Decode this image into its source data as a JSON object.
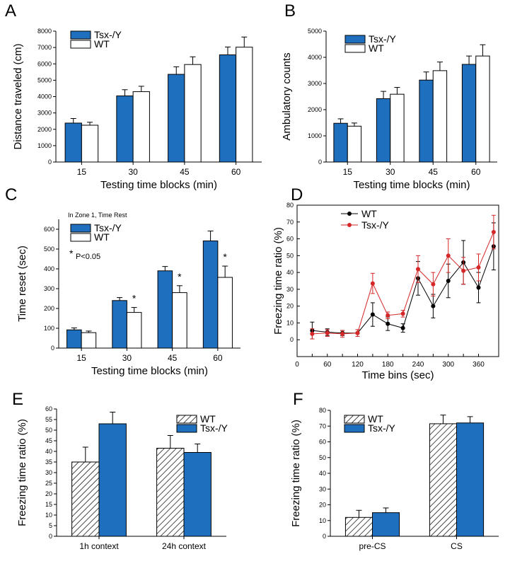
{
  "colors": {
    "tsx": "#1f6fbf",
    "wt": "#ffffff",
    "wt_line": "#000000",
    "tsx_line": "#d62728",
    "hatch": "#000000"
  },
  "chart_data": [
    {
      "panel": "A",
      "type": "bar",
      "categories": [
        "15",
        "30",
        "45",
        "60"
      ],
      "series": [
        {
          "name": "Tsx-/Y",
          "values": [
            2380,
            4040,
            5360,
            6550
          ],
          "errors": [
            280,
            380,
            460,
            480
          ],
          "style": "blue"
        },
        {
          "name": "WT",
          "values": [
            2250,
            4300,
            5960,
            7020
          ],
          "errors": [
            180,
            330,
            470,
            620
          ],
          "style": "white"
        }
      ],
      "xlabel": "Testing time blocks (min)",
      "ylabel": "Distance traveled (cm)",
      "ylim": [
        0,
        8000
      ],
      "yticks": [
        0,
        1000,
        2000,
        3000,
        4000,
        5000,
        6000,
        7000,
        8000
      ],
      "legend": "top-left"
    },
    {
      "panel": "B",
      "type": "bar",
      "categories": [
        "15",
        "30",
        "45",
        "60"
      ],
      "series": [
        {
          "name": "Tsx-/Y",
          "values": [
            1480,
            2420,
            3130,
            3730
          ],
          "errors": [
            170,
            280,
            310,
            320
          ],
          "style": "blue"
        },
        {
          "name": "WT",
          "values": [
            1370,
            2590,
            3490,
            4050
          ],
          "errors": [
            120,
            260,
            330,
            430
          ],
          "style": "white"
        }
      ],
      "xlabel": "Testing time blocks (min)",
      "ylabel": "Ambulatory counts",
      "ylim": [
        0,
        5000
      ],
      "yticks": [
        0,
        1000,
        2000,
        3000,
        4000,
        5000
      ],
      "legend": "top-left"
    },
    {
      "panel": "C",
      "type": "bar",
      "title": "In Zone 1, Time Rest",
      "categories": [
        "15",
        "30",
        "45",
        "60"
      ],
      "series": [
        {
          "name": "Tsx-/Y",
          "values": [
            92,
            240,
            390,
            541
          ],
          "errors": [
            10,
            15,
            22,
            50
          ],
          "style": "blue"
        },
        {
          "name": "WT",
          "values": [
            78,
            180,
            280,
            357
          ],
          "errors": [
            8,
            25,
            35,
            57
          ],
          "style": "white"
        }
      ],
      "significance": [
        "",
        "*",
        "*",
        "*"
      ],
      "annotation": "P<0.05",
      "xlabel": "Testing time blocks (min)",
      "ylabel": "Time reset (sec)",
      "ylim": [
        0,
        650
      ],
      "yticks": [
        0,
        100,
        200,
        300,
        400,
        500,
        600
      ],
      "legend": "top-left"
    },
    {
      "panel": "D",
      "type": "line",
      "x": [
        30,
        60,
        90,
        120,
        150,
        180,
        210,
        240,
        270,
        300,
        330,
        360,
        390
      ],
      "series": [
        {
          "name": "WT",
          "values": [
            5.5,
            4.5,
            4,
            4,
            15,
            9.5,
            7,
            36.5,
            20,
            35,
            46,
            31,
            55.5
          ],
          "errors": [
            5,
            2,
            1.5,
            2,
            7,
            4,
            2.5,
            10,
            7,
            10,
            13,
            9,
            14
          ],
          "color": "#000000"
        },
        {
          "name": "Tsx-/Y",
          "values": [
            3.5,
            4,
            3.5,
            4,
            33.5,
            14.5,
            15.5,
            42,
            33,
            50,
            41,
            43,
            64
          ],
          "errors": [
            3,
            2,
            2,
            2,
            6,
            2,
            2,
            8,
            7,
            10,
            8,
            8,
            10
          ],
          "color": "#d62728"
        }
      ],
      "xlabel": "Time bins (sec)",
      "ylabel": "Freezing time ratio (%)",
      "xlim": [
        0,
        400
      ],
      "ylim": [
        -10,
        80
      ],
      "xticks": [
        0,
        30,
        60,
        90,
        120,
        150,
        180,
        210,
        240,
        270,
        300,
        330,
        360
      ],
      "xtick_labels": [
        "0",
        "",
        "60",
        "",
        "120",
        "",
        "180",
        "",
        "240",
        "",
        "300",
        "",
        "360"
      ],
      "yticks": [
        0,
        10,
        20,
        30,
        40,
        50,
        60,
        70,
        80
      ],
      "legend": "top-left"
    },
    {
      "panel": "E",
      "type": "bar",
      "categories": [
        "1h context",
        "24h context"
      ],
      "series": [
        {
          "name": "WT",
          "values": [
            35,
            41.5
          ],
          "errors": [
            7,
            6
          ],
          "style": "hatch"
        },
        {
          "name": "Tsx-/Y",
          "values": [
            53,
            39.5
          ],
          "errors": [
            5.5,
            4
          ],
          "style": "blue"
        }
      ],
      "xlabel": "",
      "ylabel": "Freezing time ratio (%)",
      "ylim": [
        0,
        60
      ],
      "yticks": [
        0,
        5,
        10,
        15,
        20,
        25,
        30,
        35,
        40,
        45,
        50,
        55,
        60
      ],
      "legend": "top-right"
    },
    {
      "panel": "F",
      "type": "bar",
      "categories": [
        "pre-CS",
        "CS"
      ],
      "series": [
        {
          "name": "WT",
          "values": [
            12,
            71.5
          ],
          "errors": [
            4.5,
            5.5
          ],
          "style": "hatch"
        },
        {
          "name": "Tsx-/Y",
          "values": [
            15,
            72
          ],
          "errors": [
            3,
            4
          ],
          "style": "blue"
        }
      ],
      "xlabel": "",
      "ylabel": "Freezing time ratio (%)",
      "ylim": [
        0,
        80
      ],
      "yticks": [
        0,
        10,
        20,
        30,
        40,
        50,
        60,
        70,
        80
      ],
      "legend": "top-left"
    }
  ]
}
